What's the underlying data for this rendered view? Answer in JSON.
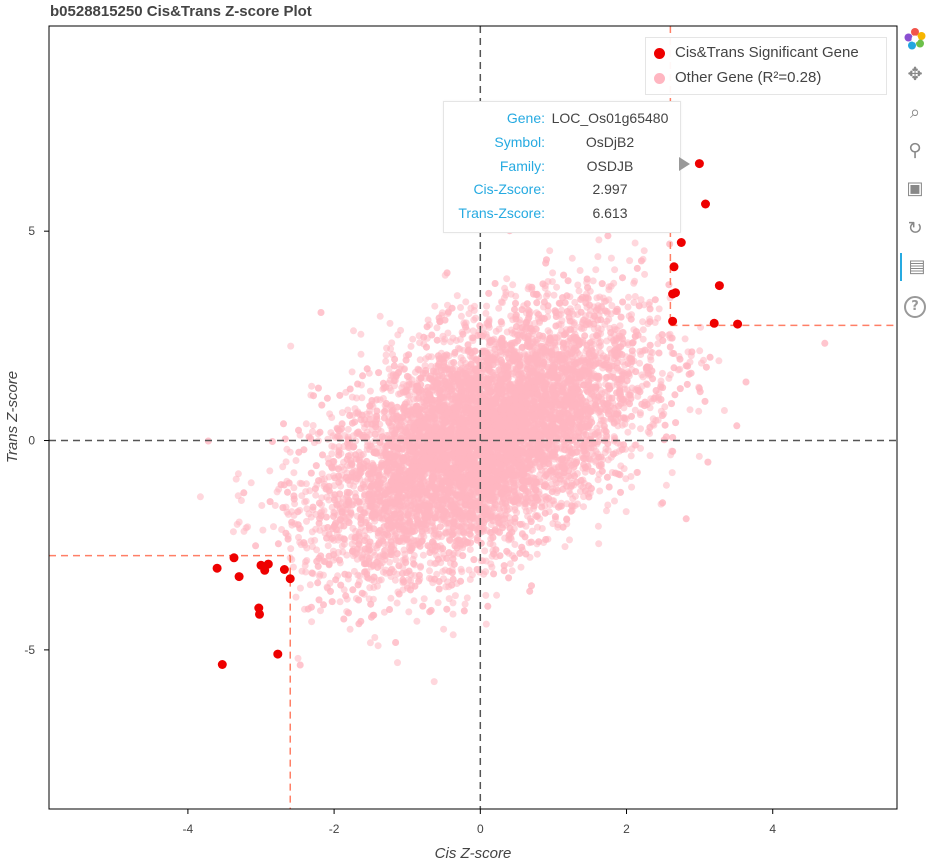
{
  "title": "b0528815250 Cis&Trans Z-score Plot",
  "chart_data": {
    "type": "scatter",
    "title": "b0528815250 Cis&Trans Z-score Plot",
    "xlabel": "Cis Z-score",
    "ylabel": "Trans Z-score",
    "xlim": [
      -5.9,
      5.7
    ],
    "ylim": [
      -8.8,
      9.9
    ],
    "x_ticks": [
      "-4",
      "-2",
      "0",
      "2",
      "4"
    ],
    "y_ticks": [
      "5",
      "0",
      "-5"
    ],
    "reference_lines": {
      "zero_x": 0,
      "zero_y": 0,
      "cis_threshold": 2.6,
      "trans_threshold": 2.75
    },
    "legend_position": "top-right",
    "series": [
      {
        "name": "Cis&Trans Significant Gene",
        "color": "#ee0000",
        "points": [
          [
            2.997,
            6.613
          ],
          [
            3.08,
            5.65
          ],
          [
            2.75,
            4.73
          ],
          [
            2.65,
            4.15
          ],
          [
            2.67,
            3.53
          ],
          [
            2.63,
            3.5
          ],
          [
            3.27,
            3.7
          ],
          [
            2.63,
            2.85
          ],
          [
            3.2,
            2.8
          ],
          [
            3.52,
            2.78
          ],
          [
            -3.6,
            -3.05
          ],
          [
            -3.37,
            -2.8
          ],
          [
            -3.3,
            -3.25
          ],
          [
            -3.0,
            -2.98
          ],
          [
            -2.95,
            -3.1
          ],
          [
            -2.9,
            -2.95
          ],
          [
            -2.68,
            -3.08
          ],
          [
            -2.6,
            -3.3
          ],
          [
            -3.03,
            -4.0
          ],
          [
            -3.02,
            -4.15
          ],
          [
            -3.53,
            -5.35
          ],
          [
            -2.77,
            -5.1
          ]
        ]
      },
      {
        "name": "Other Gene (R²=0.28)",
        "color": "#ffb6c1",
        "count": 9000,
        "correlation": 0.53,
        "x_sd": 1.1,
        "y_sd": 1.55
      }
    ]
  },
  "tooltip": {
    "rows": [
      {
        "key": "Gene:",
        "value": "LOC_Os01g65480"
      },
      {
        "key": "Symbol:",
        "value": "OsDjB2"
      },
      {
        "key": "Family:",
        "value": "OSDJB"
      },
      {
        "key": "Cis-Zscore:",
        "value": "2.997"
      },
      {
        "key": "Trans-Zscore:",
        "value": "6.613"
      }
    ]
  },
  "toolbar": {
    "items": [
      {
        "name": "logo-icon",
        "glyph": ""
      },
      {
        "name": "pan-icon",
        "glyph": "✥"
      },
      {
        "name": "box-zoom-icon",
        "glyph": "⌕"
      },
      {
        "name": "wheel-zoom-icon",
        "glyph": "⚲"
      },
      {
        "name": "save-icon",
        "glyph": "▣"
      },
      {
        "name": "reset-icon",
        "glyph": "↻"
      },
      {
        "name": "hover-icon",
        "glyph": "▤"
      },
      {
        "name": "help-icon",
        "glyph": "?"
      }
    ]
  }
}
